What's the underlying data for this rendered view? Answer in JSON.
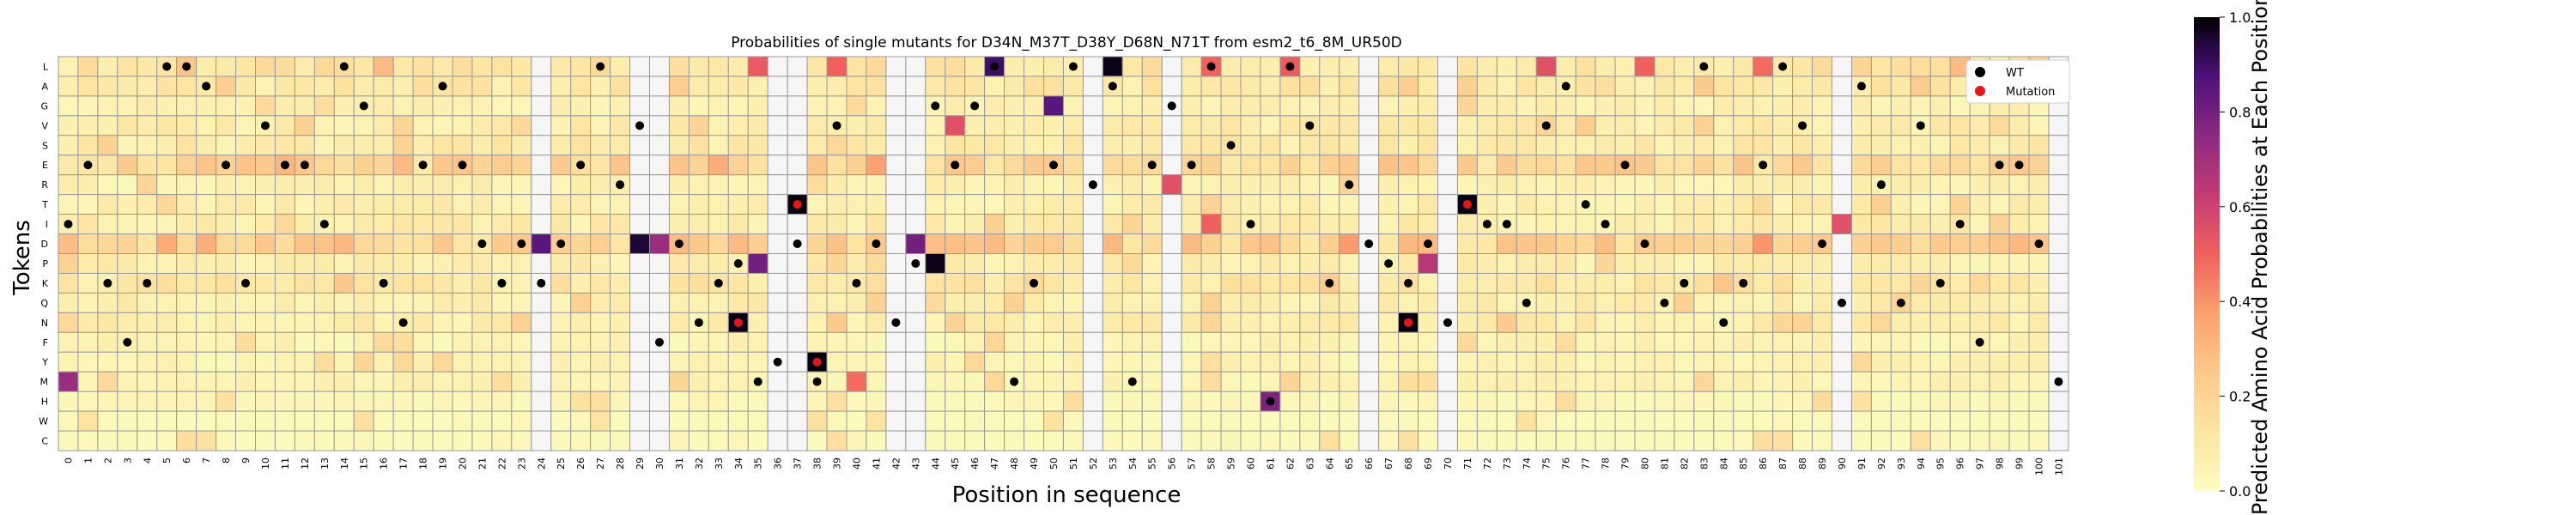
{
  "chart_data": {
    "type": "heatmap",
    "title": "Probabilities of single mutants for D34N_M37T_D38Y_D68N_N71T from esm2_t6_8M_UR50D",
    "xlabel": "Position in sequence",
    "ylabel": "Tokens",
    "tokens": [
      "L",
      "A",
      "G",
      "V",
      "S",
      "E",
      "R",
      "T",
      "I",
      "D",
      "P",
      "K",
      "Q",
      "N",
      "F",
      "Y",
      "M",
      "H",
      "W",
      "C"
    ],
    "positions": [
      0,
      1,
      2,
      3,
      4,
      5,
      6,
      7,
      8,
      9,
      10,
      11,
      12,
      13,
      14,
      15,
      16,
      17,
      18,
      19,
      20,
      21,
      22,
      23,
      24,
      25,
      26,
      27,
      28,
      29,
      30,
      31,
      32,
      33,
      34,
      35,
      36,
      37,
      38,
      39,
      40,
      41,
      42,
      43,
      44,
      45,
      46,
      47,
      48,
      49,
      50,
      51,
      52,
      53,
      54,
      55,
      56,
      57,
      58,
      59,
      60,
      61,
      62,
      63,
      64,
      65,
      66,
      67,
      68,
      69,
      70,
      71,
      72,
      73,
      74,
      75,
      76,
      77,
      78,
      79,
      80,
      81,
      82,
      83,
      84,
      85,
      86,
      87,
      88,
      89,
      90,
      91,
      92,
      93,
      94,
      95,
      96,
      97,
      98,
      99,
      100,
      101
    ],
    "wt_sequence": "IEKFKLLAEKVEEILGKNEAEDKDKDELRVFDNKPMYDMVKDNPGEGLMKELRAMEGELSIHLVKRDPKDNTIIQVATIEDQKLNKELVDQARQVKIFEEDM",
    "mutations": [
      {
        "pos": 34,
        "token": "N"
      },
      {
        "pos": 37,
        "token": "T"
      },
      {
        "pos": 38,
        "token": "Y"
      },
      {
        "pos": 68,
        "token": "N"
      },
      {
        "pos": 71,
        "token": "T"
      }
    ],
    "colormap": "magma_r",
    "colorbar": {
      "label": "Predicted Amino Acid Probabilities at Each Position",
      "range": [
        0.0,
        1.0
      ],
      "ticks": [
        "0.0",
        "0.2",
        "0.4",
        "0.6",
        "0.8",
        "1.0"
      ]
    },
    "legend": {
      "placement": "top-right",
      "entries": [
        {
          "label": "WT",
          "color": "#000000"
        },
        {
          "label": "Mutation",
          "color": "#e8141c"
        }
      ]
    },
    "notes_on_values": "cell probabilities approximated; columns 24,29,30,36,37,42,43,52,56,66,70,90,101 near 0 except strong cells",
    "strong_cells": [
      {
        "pos": 0,
        "token": "M",
        "value": 0.72
      },
      {
        "pos": 24,
        "token": "D",
        "value": 0.85
      },
      {
        "pos": 29,
        "token": "D",
        "value": 0.95
      },
      {
        "pos": 30,
        "token": "D",
        "value": 0.72
      },
      {
        "pos": 34,
        "token": "N",
        "value": 0.98
      },
      {
        "pos": 35,
        "token": "L",
        "value": 0.52
      },
      {
        "pos": 35,
        "token": "P",
        "value": 0.8
      },
      {
        "pos": 37,
        "token": "T",
        "value": 0.99
      },
      {
        "pos": 38,
        "token": "Y",
        "value": 0.99
      },
      {
        "pos": 39,
        "token": "L",
        "value": 0.5
      },
      {
        "pos": 40,
        "token": "M",
        "value": 0.48
      },
      {
        "pos": 43,
        "token": "D",
        "value": 0.8
      },
      {
        "pos": 44,
        "token": "P",
        "value": 0.98
      },
      {
        "pos": 45,
        "token": "V",
        "value": 0.55
      },
      {
        "pos": 47,
        "token": "L",
        "value": 0.9
      },
      {
        "pos": 50,
        "token": "G",
        "value": 0.85
      },
      {
        "pos": 53,
        "token": "L",
        "value": 0.98
      },
      {
        "pos": 56,
        "token": "R",
        "value": 0.55
      },
      {
        "pos": 58,
        "token": "I",
        "value": 0.5
      },
      {
        "pos": 58,
        "token": "L",
        "value": 0.5
      },
      {
        "pos": 61,
        "token": "H",
        "value": 0.78
      },
      {
        "pos": 62,
        "token": "L",
        "value": 0.52
      },
      {
        "pos": 68,
        "token": "N",
        "value": 0.99
      },
      {
        "pos": 69,
        "token": "P",
        "value": 0.65
      },
      {
        "pos": 71,
        "token": "T",
        "value": 0.99
      },
      {
        "pos": 75,
        "token": "L",
        "value": 0.55
      },
      {
        "pos": 80,
        "token": "L",
        "value": 0.5
      },
      {
        "pos": 86,
        "token": "L",
        "value": 0.48
      },
      {
        "pos": 90,
        "token": "I",
        "value": 0.55
      }
    ]
  }
}
